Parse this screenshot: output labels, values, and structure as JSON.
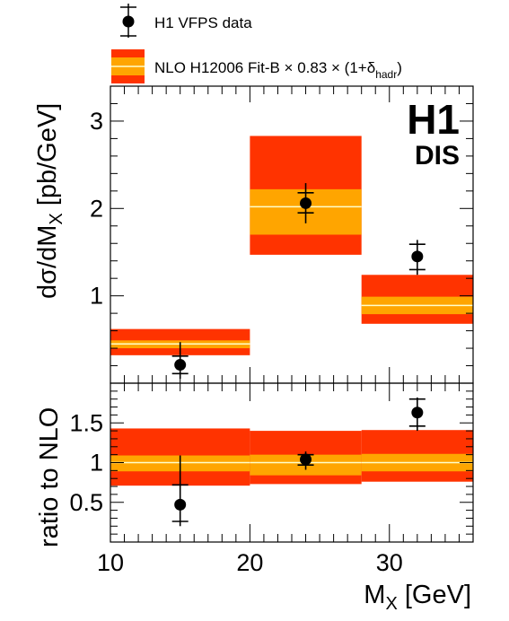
{
  "legend": {
    "data_label": "H1 VFPS data",
    "theory_label_prefix": "NLO H12006 Fit-B × 0.83 × (1+δ",
    "theory_label_sub": "hadr",
    "theory_label_suffix": ")"
  },
  "experiment": {
    "name": "H1",
    "process": "DIS"
  },
  "colors": {
    "outer_band": "#ff3300",
    "inner_band": "#ffa500",
    "central_line": "#ffffcc",
    "marker": "#000000"
  },
  "chart_data": [
    {
      "type": "scatter",
      "ylabel": "dσ/dMX [pb/GeV]",
      "xlim": [
        10,
        36
      ],
      "ylim": [
        0,
        3.4
      ],
      "yticks": [
        "1",
        "2",
        "3"
      ],
      "bins": [
        [
          10,
          20
        ],
        [
          20,
          28
        ],
        [
          28,
          36
        ]
      ],
      "prediction": {
        "central": [
          0.45,
          2.02,
          0.89
        ],
        "inner_band": [
          [
            0.4,
            0.49
          ],
          [
            1.7,
            2.22
          ],
          [
            0.79,
            0.99
          ]
        ],
        "outer_band": [
          [
            0.32,
            0.62
          ],
          [
            1.47,
            2.83
          ],
          [
            0.68,
            1.24
          ]
        ]
      },
      "series": [
        {
          "x": [
            15,
            24,
            32
          ],
          "y": [
            0.21,
            2.06,
            1.45
          ],
          "err_stat": [
            [
              0.11,
              0.31
            ],
            [
              1.95,
              2.18
            ],
            [
              1.3,
              1.59
            ]
          ],
          "err_total": [
            [
              0.05,
              0.47
            ],
            [
              1.83,
              2.29
            ],
            [
              1.24,
              1.64
            ]
          ]
        }
      ]
    },
    {
      "type": "scatter",
      "ylabel": "ratio to NLO",
      "xlabel": "MX [GeV]",
      "xlim": [
        10,
        36
      ],
      "ylim": [
        0,
        2
      ],
      "yticks": [
        "0.5",
        "1",
        "1.5"
      ],
      "xticks": [
        "10",
        "20",
        "30"
      ],
      "bins": [
        [
          10,
          20
        ],
        [
          20,
          28
        ],
        [
          28,
          36
        ]
      ],
      "prediction": {
        "central": [
          1.0,
          1.0,
          1.0
        ],
        "inner_band": [
          [
            0.89,
            1.09
          ],
          [
            0.84,
            1.1
          ],
          [
            0.89,
            1.11
          ]
        ],
        "outer_band": [
          [
            0.71,
            1.43
          ],
          [
            0.73,
            1.4
          ],
          [
            0.76,
            1.41
          ]
        ]
      },
      "series": [
        {
          "x": [
            15,
            24,
            32
          ],
          "y": [
            0.47,
            1.04,
            1.63
          ],
          "err_stat": [
            [
              0.26,
              0.72
            ],
            [
              0.97,
              1.1
            ],
            [
              1.46,
              1.8
            ]
          ],
          "err_total": [
            [
              0.2,
              1.09
            ],
            [
              0.91,
              1.14
            ],
            [
              1.4,
              1.82
            ]
          ]
        }
      ]
    }
  ]
}
